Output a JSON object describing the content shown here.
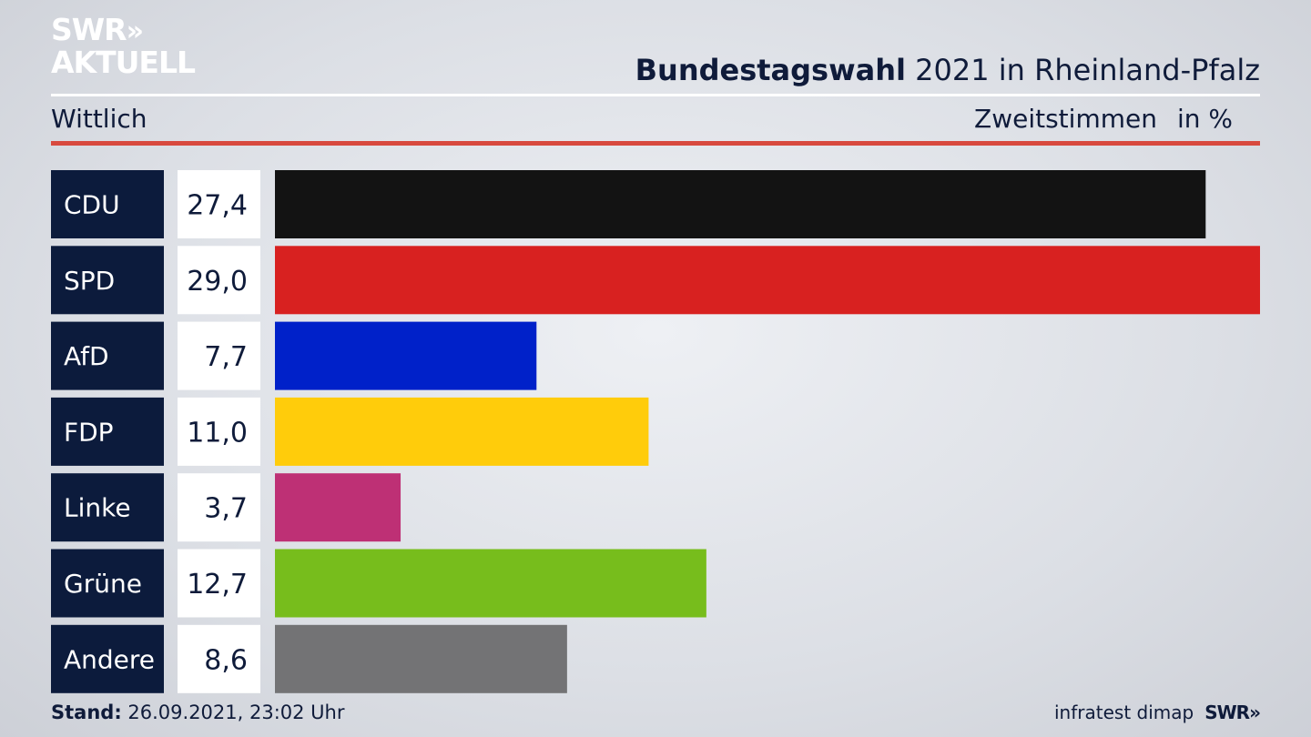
{
  "logo": {
    "line1": "SWR",
    "chevrons": "»",
    "line2": "AKTUELL"
  },
  "header": {
    "title_bold": "Bundestagswahl",
    "title_rest": " 2021 in Rheinland-Pfalz",
    "region": "Wittlich",
    "measure": "Zweitstimmen",
    "unit": "in %"
  },
  "chart_data": {
    "type": "bar",
    "orientation": "horizontal",
    "categories": [
      "CDU",
      "SPD",
      "AfD",
      "FDP",
      "Linke",
      "Grüne",
      "Andere"
    ],
    "values": [
      27.4,
      29.0,
      7.7,
      11.0,
      3.7,
      12.7,
      8.6
    ],
    "value_labels": [
      "27,4",
      "29,0",
      "7,7",
      "11,0",
      "3,7",
      "12,7",
      "8,6"
    ],
    "colors": [
      "#131313",
      "#d82120",
      "#0021c9",
      "#ffcc0b",
      "#be3075",
      "#77bd1c",
      "#737375"
    ],
    "label_bg": "#0c1b3c",
    "value_bg": "#ffffff",
    "xlim": [
      0,
      29.0
    ],
    "title": "Bundestagswahl 2021 in Rheinland-Pfalz",
    "xlabel": "",
    "ylabel": "",
    "grid": false,
    "legend": "none"
  },
  "footer": {
    "stand_label": "Stand:",
    "stand_value": " 26.09.2021, 23:02 Uhr",
    "source": "infratest dimap",
    "broadcaster": "SWR",
    "broadcaster_chevrons": "»"
  }
}
